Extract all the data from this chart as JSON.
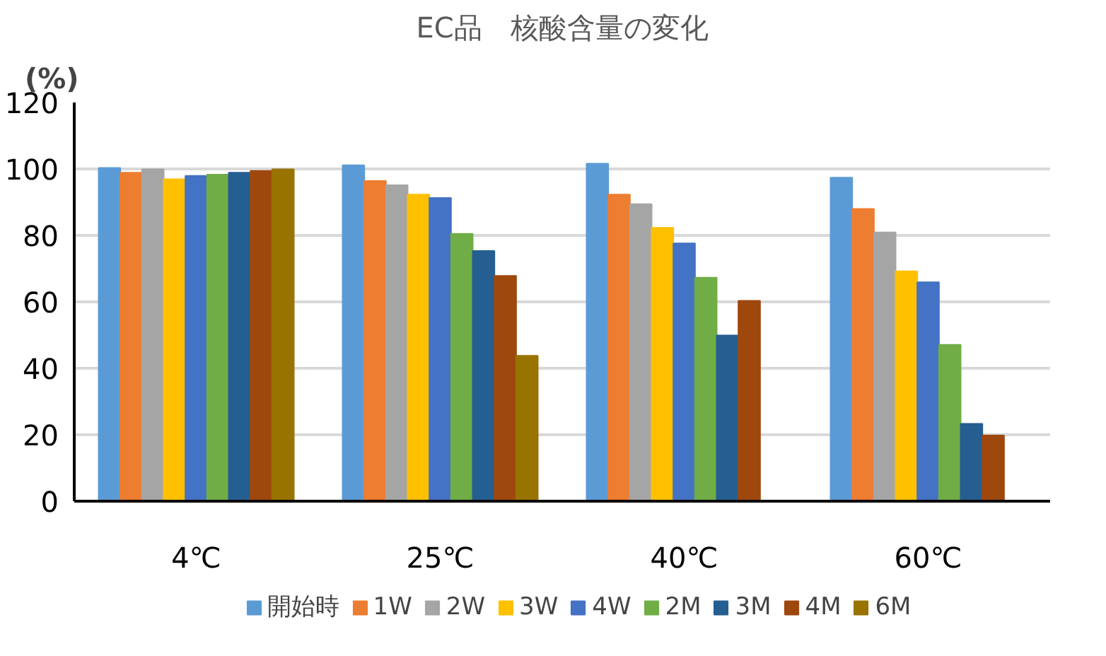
{
  "chart_data": {
    "type": "bar",
    "title": "EC品　核酸含量の変化",
    "ylabel": "(%)",
    "categories": [
      "4℃",
      "25℃",
      "40℃",
      "60℃"
    ],
    "series": [
      {
        "name": "開始時",
        "color": "#5b9bd5",
        "values": [
          100.3,
          101.1,
          101.6,
          97.4
        ]
      },
      {
        "name": "1W",
        "color": "#ed7d31",
        "values": [
          98.9,
          96.4,
          92.3,
          88.0
        ]
      },
      {
        "name": "2W",
        "color": "#a5a5a5",
        "values": [
          99.9,
          95.1,
          89.4,
          80.9
        ]
      },
      {
        "name": "3W",
        "color": "#ffc000",
        "values": [
          96.9,
          92.3,
          82.3,
          69.2
        ]
      },
      {
        "name": "4W",
        "color": "#4472c4",
        "values": [
          97.9,
          91.3,
          77.6,
          65.9
        ]
      },
      {
        "name": "2M",
        "color": "#70ad47",
        "values": [
          98.3,
          80.5,
          67.3,
          47.1
        ]
      },
      {
        "name": "3M",
        "color": "#255e91",
        "values": [
          98.9,
          75.3,
          49.9,
          23.3
        ]
      },
      {
        "name": "4M",
        "color": "#9e480e",
        "values": [
          99.4,
          67.8,
          60.3,
          19.8
        ]
      },
      {
        "name": "6M",
        "color": "#997300",
        "values": [
          99.9,
          43.8,
          null,
          null
        ]
      }
    ],
    "ylim": [
      0,
      120
    ],
    "yticks": [
      0,
      20,
      40,
      60,
      80,
      100,
      120
    ],
    "grid": "y",
    "legend": "bottom"
  }
}
